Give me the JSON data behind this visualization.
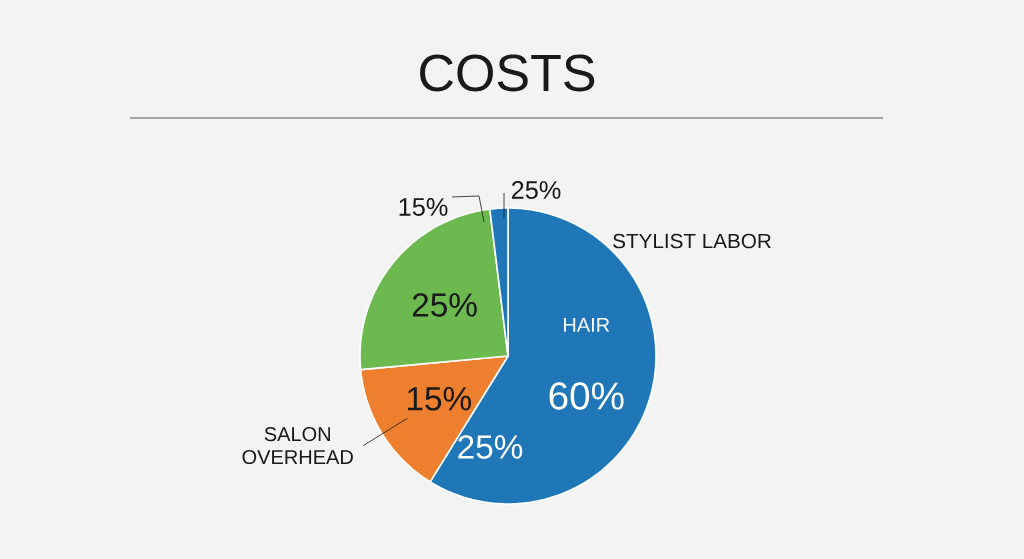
{
  "chart_data": {
    "type": "pie",
    "title": "COSTS",
    "categories": [
      "HAIR",
      "SALON OVERHEAD",
      null,
      null
    ],
    "values": [
      60,
      15,
      25,
      2
    ],
    "colors": [
      "#1f77b8",
      "#ee7f2e",
      "#6cb94f",
      "#1f77b8"
    ],
    "value_labels": [
      "60%",
      "15%",
      "25%",
      null
    ],
    "annotations": [
      "STYLIST LABOR",
      "15%",
      "25%",
      "25%"
    ]
  }
}
